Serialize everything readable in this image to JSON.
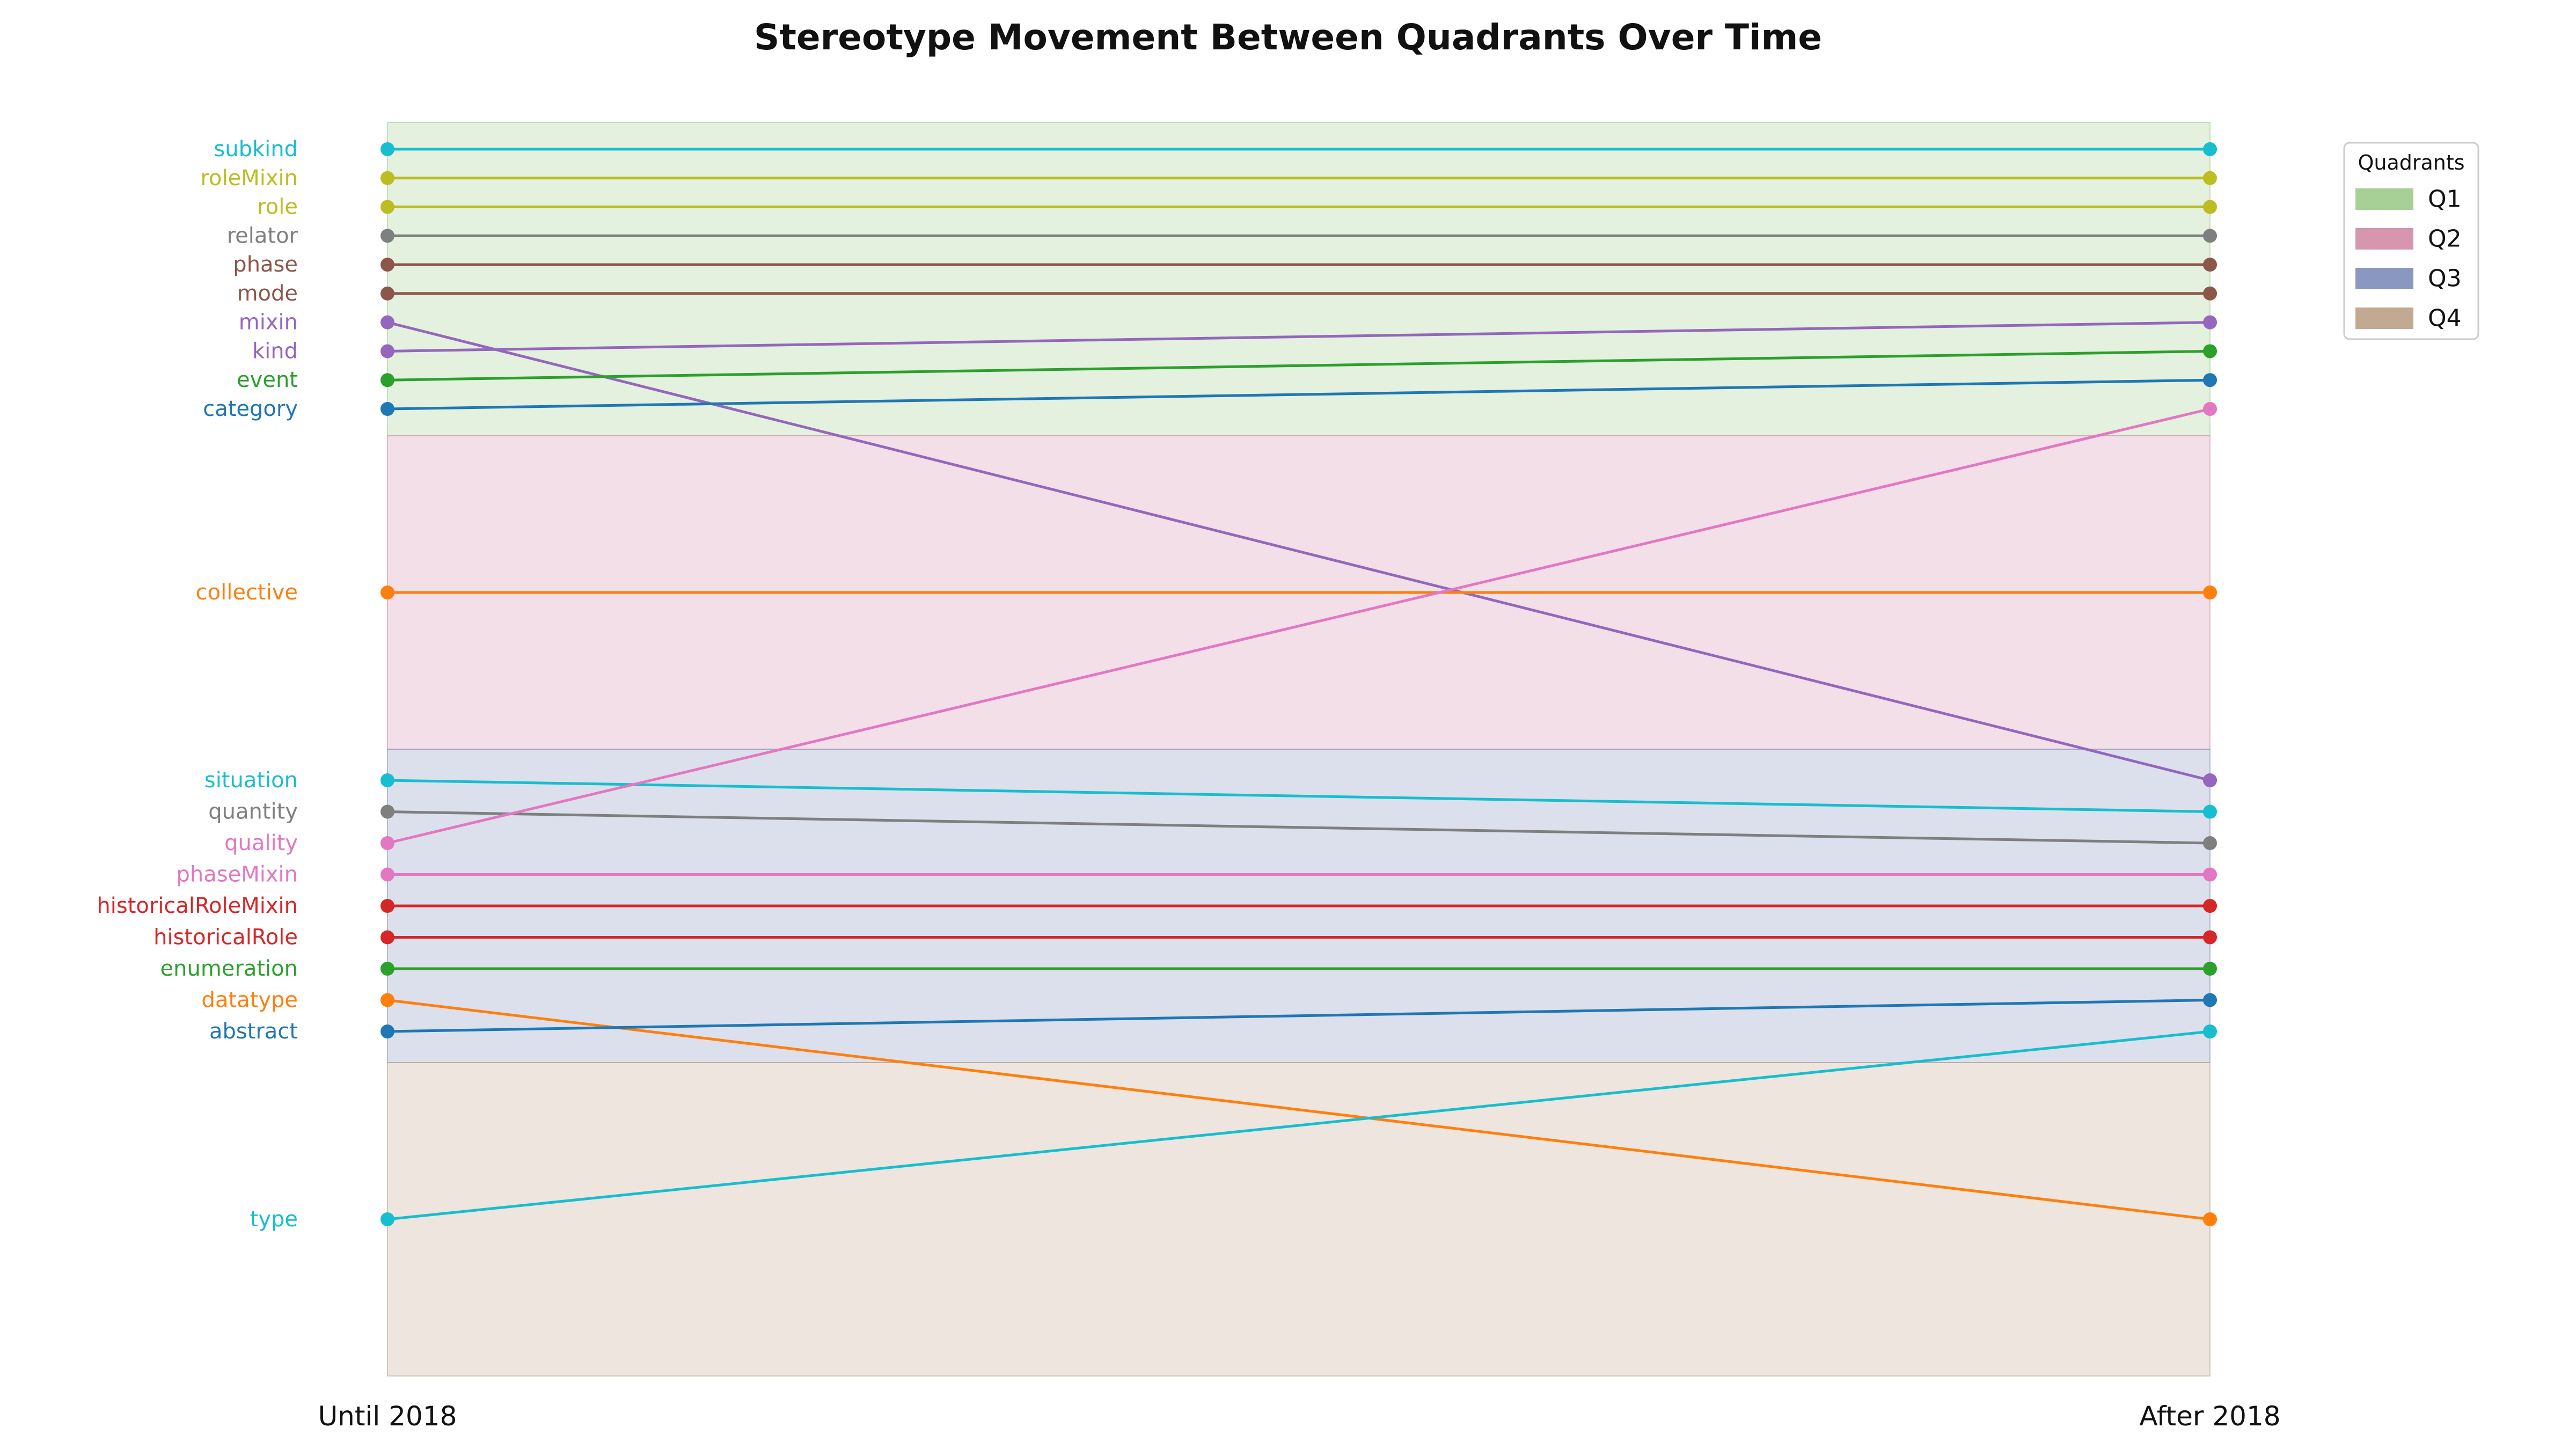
{
  "chart_data": {
    "type": "slope",
    "title": "Stereotype Movement Between Quadrants Over Time",
    "x_categories": [
      "Until 2018",
      "After 2018"
    ],
    "quadrants": [
      {
        "name": "Q1",
        "color": "#a6d096"
      },
      {
        "name": "Q2",
        "color": "#d596ae"
      },
      {
        "name": "Q3",
        "color": "#8a97c0"
      },
      {
        "name": "Q4",
        "color": "#c2aa92"
      }
    ],
    "legend": {
      "title": "Quadrants",
      "placement": "top-right"
    },
    "grid": false,
    "series": [
      {
        "name": "subkind",
        "color": "#17becf",
        "from": "Q1",
        "to": "Q1"
      },
      {
        "name": "roleMixin",
        "color": "#bcbd22",
        "from": "Q1",
        "to": "Q1"
      },
      {
        "name": "role",
        "color": "#bcbd22",
        "from": "Q1",
        "to": "Q1"
      },
      {
        "name": "relator",
        "color": "#7f7f7f",
        "from": "Q1",
        "to": "Q1"
      },
      {
        "name": "phase",
        "color": "#8c564b",
        "from": "Q1",
        "to": "Q1"
      },
      {
        "name": "mode",
        "color": "#8c564b",
        "from": "Q1",
        "to": "Q1"
      },
      {
        "name": "mixin",
        "color": "#9467bd",
        "from": "Q1",
        "to": "Q3"
      },
      {
        "name": "kind",
        "color": "#9467bd",
        "from": "Q1",
        "to": "Q1"
      },
      {
        "name": "event",
        "color": "#2ca02c",
        "from": "Q1",
        "to": "Q1"
      },
      {
        "name": "category",
        "color": "#1f77b4",
        "from": "Q1",
        "to": "Q1"
      },
      {
        "name": "collective",
        "color": "#ff7f0e",
        "from": "Q2",
        "to": "Q2"
      },
      {
        "name": "situation",
        "color": "#17becf",
        "from": "Q3",
        "to": "Q3"
      },
      {
        "name": "quantity",
        "color": "#7f7f7f",
        "from": "Q3",
        "to": "Q3"
      },
      {
        "name": "quality",
        "color": "#e377c2",
        "from": "Q3",
        "to": "Q1"
      },
      {
        "name": "phaseMixin",
        "color": "#e377c2",
        "from": "Q3",
        "to": "Q3"
      },
      {
        "name": "historicalRoleMixin",
        "color": "#d62728",
        "from": "Q3",
        "to": "Q3"
      },
      {
        "name": "historicalRole",
        "color": "#d62728",
        "from": "Q3",
        "to": "Q3"
      },
      {
        "name": "enumeration",
        "color": "#2ca02c",
        "from": "Q3",
        "to": "Q3"
      },
      {
        "name": "datatype",
        "color": "#ff7f0e",
        "from": "Q3",
        "to": "Q4"
      },
      {
        "name": "abstract",
        "color": "#1f77b4",
        "from": "Q3",
        "to": "Q3"
      },
      {
        "name": "type",
        "color": "#17becf",
        "from": "Q4",
        "to": "Q3"
      }
    ]
  }
}
